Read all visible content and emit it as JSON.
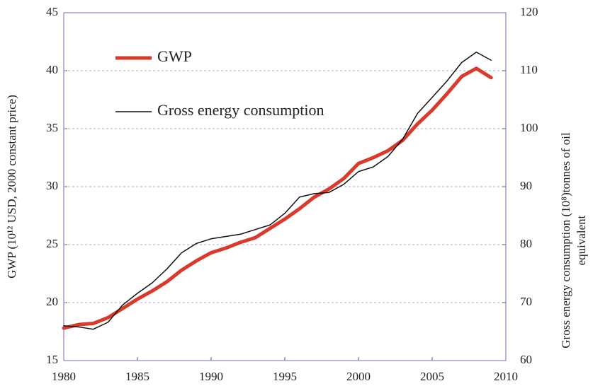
{
  "chart_data": {
    "type": "line",
    "y_label": "GWP (10¹² USD, 2000 constant price)",
    "y2_label": [
      "Gross energy consumption (10⁸)tonnes of oil",
      "equivalent"
    ],
    "x": [
      1980,
      1981,
      1982,
      1983,
      1984,
      1985,
      1986,
      1987,
      1988,
      1989,
      1990,
      1991,
      1992,
      1993,
      1994,
      1995,
      1996,
      1997,
      1998,
      1999,
      2000,
      2001,
      2002,
      2003,
      2004,
      2005,
      2006,
      2007,
      2008,
      2009
    ],
    "xlim": [
      1980,
      2010
    ],
    "xticks": [
      1980,
      1985,
      1990,
      1995,
      2000,
      2005,
      2010
    ],
    "ylim": [
      15,
      45
    ],
    "yticks": [
      15,
      20,
      25,
      30,
      35,
      40,
      45
    ],
    "y2lim": [
      60,
      120
    ],
    "y2ticks": [
      60,
      70,
      80,
      90,
      100,
      110,
      120
    ],
    "grid": true,
    "legend": "top-left",
    "series": [
      {
        "name": "GWP",
        "color": "#d93a2b",
        "width": 5,
        "values": [
          17.8,
          18.1,
          18.2,
          18.7,
          19.5,
          20.3,
          21.0,
          21.8,
          22.8,
          23.6,
          24.3,
          24.7,
          25.2,
          25.6,
          26.4,
          27.2,
          28.1,
          29.1,
          29.8,
          30.7,
          32.0,
          32.5,
          33.1,
          34.0,
          35.4,
          36.6,
          38.0,
          39.5,
          40.2,
          39.4
        ]
      },
      {
        "name": "Gross energy consumption",
        "color": "#111111",
        "width": 1.5,
        "axis": "y2",
        "values": [
          66,
          65.8,
          65.4,
          66.6,
          69.6,
          71.6,
          73.4,
          75.8,
          78.6,
          80.2,
          81,
          81.4,
          81.8,
          82.6,
          83.4,
          85.4,
          88.2,
          88.8,
          89,
          90.4,
          92.6,
          93.4,
          95.2,
          98.2,
          102.6,
          105.4,
          108.2,
          111.4,
          113.2,
          111.8
        ]
      }
    ]
  }
}
